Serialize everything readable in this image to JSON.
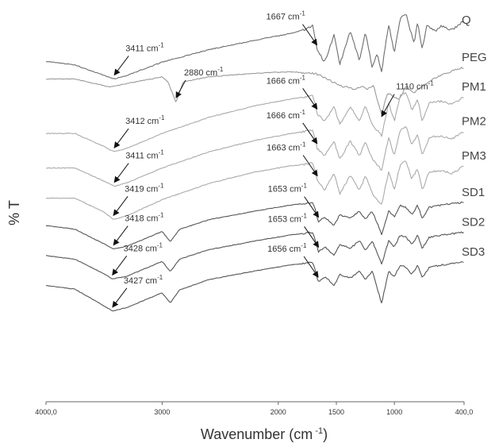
{
  "chart_data": {
    "type": "line",
    "title": "",
    "xlabel_main": "Wavenumber (cm",
    "xlabel_sup": " -1",
    "xlabel_end": ")",
    "ylabel": "% T",
    "xlim": [
      4000,
      400
    ],
    "x_reversed": true,
    "grid": false,
    "legend": "none",
    "x_ticks": [
      {
        "value": 4000,
        "label": "4000,0"
      },
      {
        "value": 3000,
        "label": "3000"
      },
      {
        "value": 2000,
        "label": "2000"
      },
      {
        "value": 1500,
        "label": "1500"
      },
      {
        "value": 1000,
        "label": "1000"
      },
      {
        "value": 400,
        "label": "400,0"
      }
    ],
    "series": [
      {
        "name": "Q",
        "color": "#6e6e6e",
        "offset": 0,
        "noise": 3,
        "points": [
          [
            4000,
            0.71
          ],
          [
            3750,
            0.76
          ],
          [
            3450,
            0.93
          ],
          [
            3411,
            0.95
          ],
          [
            3300,
            0.9
          ],
          [
            3000,
            0.72
          ],
          [
            2600,
            0.55
          ],
          [
            2200,
            0.42
          ],
          [
            1900,
            0.33
          ],
          [
            1750,
            0.26
          ],
          [
            1700,
            0.22
          ],
          [
            1667,
            0.55
          ],
          [
            1600,
            0.72
          ],
          [
            1520,
            0.35
          ],
          [
            1470,
            0.75
          ],
          [
            1380,
            0.3
          ],
          [
            1300,
            0.7
          ],
          [
            1250,
            0.3
          ],
          [
            1190,
            0.8
          ],
          [
            1150,
            0.6
          ],
          [
            1110,
            0.85
          ],
          [
            1050,
            0.2
          ],
          [
            1000,
            0.6
          ],
          [
            950,
            0.12
          ],
          [
            900,
            0.05
          ],
          [
            870,
            0.25
          ],
          [
            830,
            0.45
          ],
          [
            800,
            0.18
          ],
          [
            760,
            0.55
          ],
          [
            720,
            0.22
          ],
          [
            650,
            0.3
          ],
          [
            600,
            0.22
          ],
          [
            500,
            0.28
          ],
          [
            450,
            0.22
          ],
          [
            400,
            0.15
          ]
        ]
      },
      {
        "name": "PEG",
        "color": "#999999",
        "offset": 0.78,
        "noise": 2.5,
        "points": [
          [
            4000,
            0.46
          ],
          [
            3750,
            0.46
          ],
          [
            3500,
            0.55
          ],
          [
            3450,
            0.57
          ],
          [
            3300,
            0.52
          ],
          [
            3000,
            0.43
          ],
          [
            2950,
            0.5
          ],
          [
            2880,
            0.78
          ],
          [
            2820,
            0.5
          ],
          [
            2600,
            0.43
          ],
          [
            2200,
            0.38
          ],
          [
            1900,
            0.36
          ],
          [
            1700,
            0.38
          ],
          [
            1650,
            0.4
          ],
          [
            1470,
            0.55
          ],
          [
            1340,
            0.6
          ],
          [
            1280,
            0.55
          ],
          [
            1240,
            0.6
          ],
          [
            1180,
            0.55
          ],
          [
            1110,
            0.95
          ],
          [
            1060,
            0.65
          ],
          [
            960,
            0.75
          ],
          [
            900,
            0.55
          ],
          [
            840,
            0.65
          ],
          [
            700,
            0.5
          ],
          [
            600,
            0.4
          ],
          [
            500,
            0.35
          ],
          [
            400,
            0.3
          ]
        ]
      },
      {
        "name": "PM1",
        "color": "#aaaaaa",
        "offset": 1.55,
        "noise": 2.5,
        "points": [
          [
            4000,
            0.72
          ],
          [
            3750,
            0.72
          ],
          [
            3500,
            0.9
          ],
          [
            3412,
            0.97
          ],
          [
            3300,
            0.92
          ],
          [
            3000,
            0.72
          ],
          [
            2600,
            0.5
          ],
          [
            2200,
            0.34
          ],
          [
            1900,
            0.25
          ],
          [
            1700,
            0.2
          ],
          [
            1666,
            0.45
          ],
          [
            1600,
            0.55
          ],
          [
            1520,
            0.35
          ],
          [
            1470,
            0.6
          ],
          [
            1380,
            0.35
          ],
          [
            1300,
            0.55
          ],
          [
            1250,
            0.35
          ],
          [
            1190,
            0.6
          ],
          [
            1110,
            0.75
          ],
          [
            1050,
            0.3
          ],
          [
            1000,
            0.55
          ],
          [
            950,
            0.2
          ],
          [
            900,
            0.15
          ],
          [
            850,
            0.4
          ],
          [
            800,
            0.25
          ],
          [
            760,
            0.55
          ],
          [
            700,
            0.3
          ],
          [
            600,
            0.28
          ],
          [
            500,
            0.32
          ],
          [
            400,
            0.22
          ]
        ]
      },
      {
        "name": "PM2",
        "color": "#aaaaaa",
        "offset": 2.3,
        "noise": 2.5,
        "points": [
          [
            4000,
            0.72
          ],
          [
            3750,
            0.72
          ],
          [
            3500,
            0.9
          ],
          [
            3411,
            0.97
          ],
          [
            3300,
            0.92
          ],
          [
            3000,
            0.72
          ],
          [
            2600,
            0.5
          ],
          [
            2200,
            0.34
          ],
          [
            1900,
            0.25
          ],
          [
            1700,
            0.2
          ],
          [
            1666,
            0.45
          ],
          [
            1600,
            0.55
          ],
          [
            1520,
            0.35
          ],
          [
            1470,
            0.6
          ],
          [
            1380,
            0.35
          ],
          [
            1300,
            0.55
          ],
          [
            1250,
            0.35
          ],
          [
            1190,
            0.6
          ],
          [
            1110,
            0.75
          ],
          [
            1050,
            0.3
          ],
          [
            1000,
            0.55
          ],
          [
            950,
            0.2
          ],
          [
            900,
            0.15
          ],
          [
            850,
            0.4
          ],
          [
            800,
            0.25
          ],
          [
            760,
            0.55
          ],
          [
            700,
            0.3
          ],
          [
            600,
            0.28
          ],
          [
            500,
            0.32
          ],
          [
            400,
            0.22
          ]
        ]
      },
      {
        "name": "PM3",
        "color": "#aaaaaa",
        "offset": 3.05,
        "noise": 2.5,
        "points": [
          [
            4000,
            0.66
          ],
          [
            3750,
            0.66
          ],
          [
            3500,
            0.85
          ],
          [
            3419,
            0.95
          ],
          [
            3300,
            0.9
          ],
          [
            3000,
            0.68
          ],
          [
            2600,
            0.46
          ],
          [
            2200,
            0.3
          ],
          [
            1900,
            0.22
          ],
          [
            1700,
            0.18
          ],
          [
            1663,
            0.42
          ],
          [
            1600,
            0.55
          ],
          [
            1520,
            0.32
          ],
          [
            1470,
            0.6
          ],
          [
            1380,
            0.35
          ],
          [
            1300,
            0.55
          ],
          [
            1250,
            0.35
          ],
          [
            1190,
            0.6
          ],
          [
            1110,
            0.75
          ],
          [
            1050,
            0.3
          ],
          [
            1000,
            0.55
          ],
          [
            950,
            0.2
          ],
          [
            900,
            0.15
          ],
          [
            850,
            0.4
          ],
          [
            800,
            0.25
          ],
          [
            760,
            0.55
          ],
          [
            700,
            0.3
          ],
          [
            600,
            0.28
          ],
          [
            500,
            0.32
          ],
          [
            400,
            0.22
          ]
        ]
      },
      {
        "name": "SD1",
        "color": "#555555",
        "offset": 3.9,
        "noise": 2,
        "points": [
          [
            4000,
            0.5
          ],
          [
            3750,
            0.55
          ],
          [
            3500,
            0.75
          ],
          [
            3418,
            0.82
          ],
          [
            3300,
            0.78
          ],
          [
            3000,
            0.58
          ],
          [
            2930,
            0.72
          ],
          [
            2850,
            0.55
          ],
          [
            2600,
            0.42
          ],
          [
            2200,
            0.3
          ],
          [
            1900,
            0.22
          ],
          [
            1700,
            0.18
          ],
          [
            1653,
            0.45
          ],
          [
            1600,
            0.38
          ],
          [
            1520,
            0.5
          ],
          [
            1470,
            0.35
          ],
          [
            1380,
            0.4
          ],
          [
            1300,
            0.3
          ],
          [
            1250,
            0.42
          ],
          [
            1190,
            0.3
          ],
          [
            1110,
            0.62
          ],
          [
            1050,
            0.3
          ],
          [
            1000,
            0.38
          ],
          [
            950,
            0.22
          ],
          [
            900,
            0.25
          ],
          [
            850,
            0.35
          ],
          [
            800,
            0.22
          ],
          [
            760,
            0.4
          ],
          [
            700,
            0.25
          ],
          [
            600,
            0.22
          ],
          [
            500,
            0.2
          ],
          [
            400,
            0.18
          ]
        ]
      },
      {
        "name": "SD2",
        "color": "#555555",
        "offset": 4.55,
        "noise": 2,
        "points": [
          [
            4000,
            0.5
          ],
          [
            3750,
            0.55
          ],
          [
            3500,
            0.75
          ],
          [
            3428,
            0.82
          ],
          [
            3300,
            0.78
          ],
          [
            3000,
            0.58
          ],
          [
            2930,
            0.72
          ],
          [
            2850,
            0.55
          ],
          [
            2600,
            0.42
          ],
          [
            2200,
            0.3
          ],
          [
            1900,
            0.22
          ],
          [
            1700,
            0.18
          ],
          [
            1653,
            0.45
          ],
          [
            1600,
            0.38
          ],
          [
            1520,
            0.5
          ],
          [
            1470,
            0.35
          ],
          [
            1380,
            0.4
          ],
          [
            1300,
            0.3
          ],
          [
            1250,
            0.42
          ],
          [
            1190,
            0.3
          ],
          [
            1110,
            0.62
          ],
          [
            1050,
            0.3
          ],
          [
            1000,
            0.38
          ],
          [
            950,
            0.22
          ],
          [
            900,
            0.25
          ],
          [
            850,
            0.35
          ],
          [
            800,
            0.22
          ],
          [
            760,
            0.4
          ],
          [
            700,
            0.25
          ],
          [
            600,
            0.22
          ],
          [
            500,
            0.2
          ],
          [
            400,
            0.18
          ]
        ]
      },
      {
        "name": "SD3",
        "color": "#555555",
        "offset": 5.2,
        "noise": 2,
        "points": [
          [
            4000,
            0.5
          ],
          [
            3750,
            0.55
          ],
          [
            3500,
            0.78
          ],
          [
            3427,
            0.85
          ],
          [
            3300,
            0.8
          ],
          [
            3000,
            0.6
          ],
          [
            2930,
            0.74
          ],
          [
            2850,
            0.56
          ],
          [
            2600,
            0.42
          ],
          [
            2200,
            0.3
          ],
          [
            1900,
            0.22
          ],
          [
            1700,
            0.18
          ],
          [
            1656,
            0.45
          ],
          [
            1600,
            0.38
          ],
          [
            1520,
            0.5
          ],
          [
            1470,
            0.35
          ],
          [
            1380,
            0.4
          ],
          [
            1300,
            0.3
          ],
          [
            1250,
            0.42
          ],
          [
            1190,
            0.3
          ],
          [
            1110,
            0.75
          ],
          [
            1050,
            0.3
          ],
          [
            1000,
            0.38
          ],
          [
            950,
            0.22
          ],
          [
            900,
            0.25
          ],
          [
            850,
            0.35
          ],
          [
            800,
            0.22
          ],
          [
            760,
            0.4
          ],
          [
            700,
            0.25
          ],
          [
            600,
            0.22
          ],
          [
            500,
            0.2
          ],
          [
            400,
            0.18
          ]
        ]
      }
    ],
    "annotations": [
      {
        "series": "Q",
        "x": 3411,
        "main": "3411 cm",
        "sup": "-1"
      },
      {
        "series": "Q",
        "x": 1667,
        "main": "1667 cm",
        "sup": "-1"
      },
      {
        "series": "PEG",
        "x": 2880,
        "main": "2880 cm",
        "sup": "-1"
      },
      {
        "series": "PEG",
        "x": 1110,
        "main": "1110 cm",
        "sup": "-1"
      },
      {
        "series": "PM1",
        "x": 3412,
        "main": "3412 cm",
        "sup": "-1"
      },
      {
        "series": "PM1",
        "x": 1666,
        "main": "1666 cm",
        "sup": "-1"
      },
      {
        "series": "PM2",
        "x": 3411,
        "main": "3411 cm",
        "sup": "-1"
      },
      {
        "series": "PM2",
        "x": 1666,
        "main": "1666 cm",
        "sup": "-1"
      },
      {
        "series": "PM3",
        "x": 3419,
        "main": "3419 cm",
        "sup": "-1"
      },
      {
        "series": "PM3",
        "x": 1663,
        "main": "1663 cm",
        "sup": "-1"
      },
      {
        "series": "SD1",
        "x": 3418,
        "main": "3418 cm",
        "sup": "-1"
      },
      {
        "series": "SD1",
        "x": 1653,
        "main": "1653 cm",
        "sup": "-1"
      },
      {
        "series": "SD2",
        "x": 3428,
        "main": "3428 cm",
        "sup": "-1"
      },
      {
        "series": "SD2",
        "x": 1653,
        "main": "1653 cm",
        "sup": "-1"
      },
      {
        "series": "SD3",
        "x": 3427,
        "main": "3427 cm",
        "sup": "-1"
      },
      {
        "series": "SD3",
        "x": 1656,
        "main": "1656 cm",
        "sup": "-1"
      }
    ]
  }
}
